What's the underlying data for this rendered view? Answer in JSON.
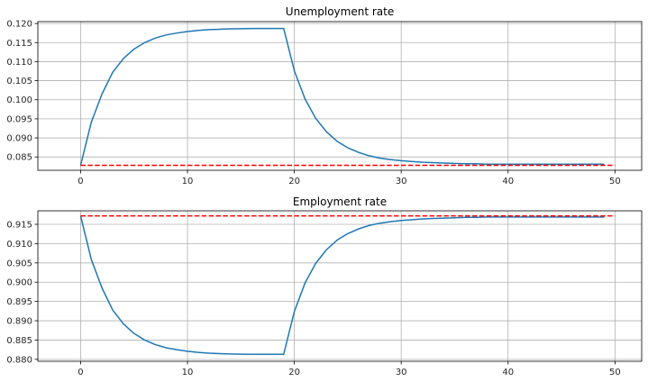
{
  "chart_data": [
    {
      "type": "line",
      "title": "Unemployment rate",
      "xlabel": "",
      "ylabel": "",
      "xlim": [
        -4,
        52.5
      ],
      "ylim": [
        0.0815,
        0.1205
      ],
      "x_ticks": [
        0,
        10,
        20,
        30,
        40,
        50
      ],
      "x_tick_labels": [
        "0",
        "10",
        "20",
        "30",
        "40",
        "50"
      ],
      "y_ticks": [
        0.085,
        0.09,
        0.095,
        0.1,
        0.105,
        0.11,
        0.115,
        0.12
      ],
      "y_tick_labels": [
        "0.085",
        "0.090",
        "0.095",
        "0.100",
        "0.105",
        "0.110",
        "0.115",
        "0.120"
      ],
      "grid": true,
      "series": [
        {
          "color": "#1f77b4",
          "style": "solid",
          "x": [
            0,
            1,
            2,
            3,
            4,
            5,
            6,
            7,
            8,
            9,
            10,
            11,
            12,
            13,
            14,
            15,
            16,
            17,
            18,
            19,
            20,
            21,
            22,
            23,
            24,
            25,
            26,
            27,
            28,
            29,
            30,
            31,
            32,
            33,
            34,
            35,
            36,
            37,
            38,
            39,
            40,
            41,
            42,
            43,
            44,
            45,
            46,
            47,
            48,
            49
          ],
          "values": [
            0.0828,
            0.0941,
            0.1015,
            0.1072,
            0.1108,
            0.1133,
            0.115,
            0.1162,
            0.117,
            0.1175,
            0.1179,
            0.1182,
            0.1184,
            0.1185,
            0.1186,
            0.11865,
            0.1187,
            0.1187,
            0.1187,
            0.1187,
            0.1076,
            0.1002,
            0.0951,
            0.0916,
            0.0891,
            0.0874,
            0.0862,
            0.0853,
            0.0847,
            0.0843,
            0.084,
            0.0838,
            0.0836,
            0.0835,
            0.0834,
            0.0833,
            0.0832,
            0.0832,
            0.0831,
            0.0831,
            0.0831,
            0.0831,
            0.0831,
            0.0831,
            0.0831,
            0.0831,
            0.0831,
            0.0831,
            0.0831,
            0.0831
          ]
        },
        {
          "color": "#ff0000",
          "style": "dashed",
          "x": [
            0,
            50
          ],
          "values": [
            0.0828,
            0.0828
          ]
        }
      ]
    },
    {
      "type": "line",
      "title": "Employment rate",
      "xlabel": "",
      "ylabel": "",
      "xlim": [
        -4,
        52.5
      ],
      "ylim": [
        0.8795,
        0.9185
      ],
      "x_ticks": [
        0,
        10,
        20,
        30,
        40,
        50
      ],
      "x_tick_labels": [
        "0",
        "10",
        "20",
        "30",
        "40",
        "50"
      ],
      "y_ticks": [
        0.88,
        0.885,
        0.89,
        0.895,
        0.9,
        0.905,
        0.91,
        0.915
      ],
      "y_tick_labels": [
        "0.880",
        "0.885",
        "0.890",
        "0.895",
        "0.900",
        "0.905",
        "0.910",
        "0.915"
      ],
      "grid": true,
      "series": [
        {
          "color": "#1f77b4",
          "style": "solid",
          "x": [
            0,
            1,
            2,
            3,
            4,
            5,
            6,
            7,
            8,
            9,
            10,
            11,
            12,
            13,
            14,
            15,
            16,
            17,
            18,
            19,
            20,
            21,
            22,
            23,
            24,
            25,
            26,
            27,
            28,
            29,
            30,
            31,
            32,
            33,
            34,
            35,
            36,
            37,
            38,
            39,
            40,
            41,
            42,
            43,
            44,
            45,
            46,
            47,
            48,
            49
          ],
          "values": [
            0.9172,
            0.9059,
            0.8985,
            0.8928,
            0.8892,
            0.8867,
            0.885,
            0.8838,
            0.883,
            0.8825,
            0.8821,
            0.8818,
            0.8816,
            0.8815,
            0.8814,
            0.88135,
            0.8813,
            0.8813,
            0.8813,
            0.8813,
            0.8924,
            0.8998,
            0.9049,
            0.9084,
            0.9109,
            0.9126,
            0.9138,
            0.9147,
            0.9153,
            0.9157,
            0.916,
            0.9162,
            0.9164,
            0.9165,
            0.9166,
            0.9167,
            0.9168,
            0.9168,
            0.9169,
            0.9169,
            0.9169,
            0.9169,
            0.9169,
            0.9169,
            0.9169,
            0.9169,
            0.9169,
            0.9169,
            0.9169,
            0.9169
          ]
        },
        {
          "color": "#ff0000",
          "style": "dashed",
          "x": [
            0,
            50
          ],
          "values": [
            0.9172,
            0.9172
          ]
        }
      ]
    }
  ]
}
